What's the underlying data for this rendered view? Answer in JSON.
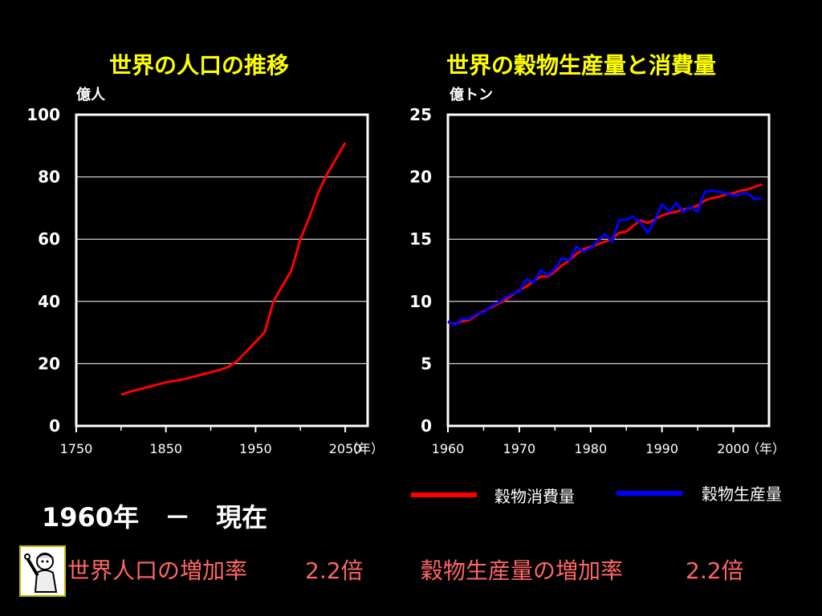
{
  "chart_data": [
    {
      "type": "line",
      "title": "世界の人口の推移",
      "ylabel": "億人",
      "xlabel": "（年）",
      "xlim": [
        1750,
        2075
      ],
      "ylim": [
        0,
        100
      ],
      "xticks": [
        "1750",
        "1850",
        "1950",
        "2050"
      ],
      "yticks": [
        "0",
        "20",
        "40",
        "60",
        "80",
        "100"
      ],
      "grid": true,
      "series": [
        {
          "color": "#ff0000",
          "x": [
            1800,
            1810,
            1830,
            1850,
            1870,
            1890,
            1910,
            1920,
            1930,
            1940,
            1950,
            1960,
            1970,
            1980,
            1990,
            2000,
            2010,
            2020,
            2030,
            2040,
            2050
          ],
          "y": [
            10,
            11,
            12.5,
            14,
            15,
            16.5,
            18,
            19,
            21,
            24,
            27,
            30,
            40,
            45,
            50,
            60,
            67,
            75,
            81,
            86,
            91
          ]
        }
      ]
    },
    {
      "type": "line",
      "title": "世界の穀物生産量と消費量",
      "ylabel": "億トン",
      "xlabel": "（年）",
      "xlim": [
        1960,
        2005
      ],
      "ylim": [
        0,
        25
      ],
      "xticks": [
        "1960",
        "1970",
        "1980",
        "1990",
        "2000"
      ],
      "yticks": [
        "0",
        "5",
        "10",
        "15",
        "20",
        "25"
      ],
      "grid": true,
      "legend": [
        "穀物消費量",
        "穀物生産量"
      ],
      "series": [
        {
          "name": "穀物消費量",
          "color": "#ff0000",
          "x": [
            1960,
            1961,
            1962,
            1963,
            1964,
            1965,
            1966,
            1967,
            1968,
            1969,
            1970,
            1971,
            1972,
            1973,
            1974,
            1975,
            1976,
            1977,
            1978,
            1979,
            1980,
            1981,
            1982,
            1983,
            1984,
            1985,
            1986,
            1987,
            1988,
            1989,
            1990,
            1991,
            1992,
            1993,
            1994,
            1995,
            1996,
            1997,
            1998,
            1999,
            2000,
            2001,
            2002,
            2003,
            2004
          ],
          "y": [
            8.3,
            8.2,
            8.4,
            8.5,
            8.9,
            9.2,
            9.5,
            9.8,
            10.1,
            10.5,
            10.9,
            11.2,
            11.6,
            12.0,
            12.0,
            12.4,
            12.9,
            13.3,
            13.8,
            14.2,
            14.4,
            14.6,
            14.8,
            15.0,
            15.5,
            15.6,
            16.1,
            16.5,
            16.3,
            16.6,
            16.9,
            17.1,
            17.2,
            17.4,
            17.5,
            17.7,
            18.1,
            18.3,
            18.4,
            18.6,
            18.7,
            18.9,
            19.0,
            19.2,
            19.4
          ]
        },
        {
          "name": "穀物生産量",
          "color": "#0000ff",
          "x": [
            1960,
            1961,
            1962,
            1963,
            1964,
            1965,
            1966,
            1967,
            1968,
            1969,
            1970,
            1971,
            1972,
            1973,
            1974,
            1975,
            1976,
            1977,
            1978,
            1979,
            1980,
            1981,
            1982,
            1983,
            1984,
            1985,
            1986,
            1987,
            1988,
            1989,
            1990,
            1991,
            1992,
            1993,
            1994,
            1995,
            1996,
            1997,
            1998,
            1999,
            2000,
            2001,
            2002,
            2003,
            2004
          ],
          "y": [
            8.4,
            8.1,
            8.6,
            8.6,
            9.0,
            9.1,
            9.6,
            9.9,
            10.3,
            10.6,
            10.8,
            11.8,
            11.5,
            12.5,
            12.1,
            12.6,
            13.5,
            13.3,
            14.4,
            14.0,
            14.3,
            14.9,
            15.4,
            14.8,
            16.5,
            16.6,
            16.8,
            16.3,
            15.5,
            16.5,
            17.8,
            17.2,
            17.9,
            17.2,
            17.6,
            17.2,
            18.8,
            18.9,
            18.8,
            18.7,
            18.5,
            18.6,
            18.7,
            18.2,
            18.3
          ]
        }
      ]
    }
  ],
  "legend": {
    "consumption_label": "穀物消費量",
    "production_label": "穀物生産量",
    "consumption_color": "#ff0000",
    "production_color": "#0000ff"
  },
  "summary": {
    "period": "1960年　－　現在",
    "population_rate_label": "世界人口の増加率",
    "population_rate_value": "2.2倍",
    "grain_rate_label": "穀物生産量の増加率",
    "grain_rate_value": "2.2倍"
  },
  "mascot_icon": "person-pointing-icon"
}
